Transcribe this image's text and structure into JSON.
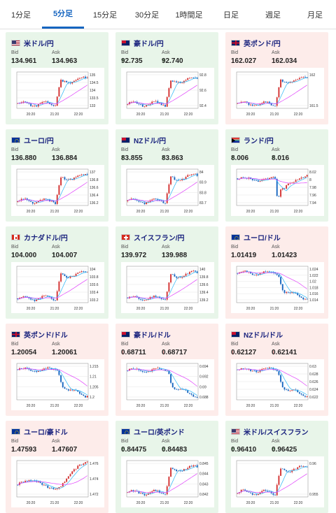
{
  "tabs": [
    "1分足",
    "5分足",
    "15分足",
    "30分足",
    "1時間足",
    "日足",
    "週足",
    "月足"
  ],
  "active_tab": 1,
  "labels": {
    "bid": "Bid",
    "ask": "Ask"
  },
  "colors": {
    "up_bg": "#e8f5e9",
    "down_bg": "#fdecea",
    "candle_up": "#d32f2f",
    "candle_down": "#1565c0",
    "ma_short": "#29b6f6",
    "ma_long": "#e040fb"
  },
  "pairs": [
    {
      "name": "米ドル/円",
      "flag": "us-flag-icon",
      "dir": "up",
      "bid": "134.961",
      "ask": "134.963",
      "chart_data": {
        "type": "candlestick",
        "x_ticks": [
          "20:20",
          "21:20",
          "22:20"
        ],
        "y_ticks": [
          "135",
          "134.5",
          "134",
          "133.5",
          "133"
        ],
        "shape": "rise"
      }
    },
    {
      "name": "豪ドル/円",
      "flag": "au-flag-icon",
      "dir": "up",
      "bid": "92.735",
      "ask": "92.740",
      "chart_data": {
        "type": "candlestick",
        "x_ticks": [
          "20:20",
          "21:20",
          "22:20"
        ],
        "y_ticks": [
          "92.8",
          "92.6",
          "92.4"
        ],
        "shape": "rise"
      }
    },
    {
      "name": "英ポンド/円",
      "flag": "gb-flag-icon",
      "dir": "down",
      "bid": "162.027",
      "ask": "162.034",
      "chart_data": {
        "type": "candlestick",
        "x_ticks": [
          "20:20",
          "21:20",
          "22:20"
        ],
        "y_ticks": [
          "162",
          "161.5"
        ],
        "shape": "rise"
      }
    },
    {
      "name": "ユーロ/円",
      "flag": "eu-flag-icon",
      "dir": "up",
      "bid": "136.880",
      "ask": "136.884",
      "chart_data": {
        "type": "candlestick",
        "x_ticks": [
          "20:20",
          "21:20",
          "22:20"
        ],
        "y_ticks": [
          "137",
          "136.8",
          "136.6",
          "136.4",
          "136.2"
        ],
        "shape": "rise"
      }
    },
    {
      "name": "NZドル/円",
      "flag": "nz-flag-icon",
      "dir": "up",
      "bid": "83.855",
      "ask": "83.863",
      "chart_data": {
        "type": "candlestick",
        "x_ticks": [
          "20:20",
          "21:20",
          "22:20"
        ],
        "y_ticks": [
          "84",
          "83.9",
          "83.8",
          "83.7"
        ],
        "shape": "rise"
      }
    },
    {
      "name": "ランド/円",
      "flag": "za-flag-icon",
      "dir": "up",
      "bid": "8.006",
      "ask": "8.016",
      "chart_data": {
        "type": "candlestick",
        "x_ticks": [
          "20:20",
          "21:20",
          "22:20"
        ],
        "y_ticks": [
          "8.02",
          "8",
          "7.98",
          "7.96",
          "7.94"
        ],
        "shape": "dip"
      }
    },
    {
      "name": "カナダドル/円",
      "flag": "ca-flag-icon",
      "dir": "up",
      "bid": "104.000",
      "ask": "104.007",
      "chart_data": {
        "type": "candlestick",
        "x_ticks": [
          "20:20",
          "21:20",
          "22:20"
        ],
        "y_ticks": [
          "104",
          "103.8",
          "103.6",
          "103.4",
          "103.2"
        ],
        "shape": "rise"
      }
    },
    {
      "name": "スイスフラン/円",
      "flag": "ch-flag-icon",
      "dir": "up",
      "bid": "139.972",
      "ask": "139.988",
      "chart_data": {
        "type": "candlestick",
        "x_ticks": [
          "20:20",
          "21:20",
          "22:20"
        ],
        "y_ticks": [
          "140",
          "139.8",
          "139.6",
          "139.4",
          "139.2"
        ],
        "shape": "rise"
      }
    },
    {
      "name": "ユーロ/ドル",
      "flag": "eu-flag-icon",
      "dir": "down",
      "bid": "1.01419",
      "ask": "1.01423",
      "chart_data": {
        "type": "candlestick",
        "x_ticks": [
          "20:20",
          "21:20",
          "22:20"
        ],
        "y_ticks": [
          "1.024",
          "1.022",
          "1.02",
          "1.018",
          "1.016",
          "1.014"
        ],
        "shape": "fall"
      }
    },
    {
      "name": "英ポンド/ドル",
      "flag": "gb-flag-icon",
      "dir": "down",
      "bid": "1.20054",
      "ask": "1.20061",
      "chart_data": {
        "type": "candlestick",
        "x_ticks": [
          "20:20",
          "21:20",
          "22:20"
        ],
        "y_ticks": [
          "1.215",
          "1.21",
          "1.205",
          "1.2"
        ],
        "shape": "fall"
      }
    },
    {
      "name": "豪ドル/ドル",
      "flag": "au-flag-icon",
      "dir": "down",
      "bid": "0.68711",
      "ask": "0.68717",
      "chart_data": {
        "type": "candlestick",
        "x_ticks": [
          "20:20",
          "21:20",
          "22:20"
        ],
        "y_ticks": [
          "0.694",
          "0.692",
          "0.69",
          "0.688"
        ],
        "shape": "fall"
      }
    },
    {
      "name": "NZドル/ドル",
      "flag": "nz-flag-icon",
      "dir": "down",
      "bid": "0.62127",
      "ask": "0.62141",
      "chart_data": {
        "type": "candlestick",
        "x_ticks": [
          "20:20",
          "21:20",
          "22:20"
        ],
        "y_ticks": [
          "0.63",
          "0.628",
          "0.626",
          "0.624",
          "0.622"
        ],
        "shape": "fall"
      }
    },
    {
      "name": "ユーロ/豪ドル",
      "flag": "eu-flag-icon",
      "dir": "down",
      "bid": "1.47593",
      "ask": "1.47607",
      "chart_data": {
        "type": "candlestick",
        "x_ticks": [
          "20:20",
          "21:20",
          "22:20"
        ],
        "y_ticks": [
          "1.476",
          "1.474",
          "1.472"
        ],
        "shape": "wave"
      }
    },
    {
      "name": "ユーロ/英ポンド",
      "flag": "eu-flag-icon",
      "dir": "up",
      "bid": "0.84475",
      "ask": "0.84483",
      "chart_data": {
        "type": "candlestick",
        "x_ticks": [
          "20:20",
          "21:20",
          "22:20"
        ],
        "y_ticks": [
          "0.845",
          "0.844",
          "0.843",
          "0.842"
        ],
        "shape": "rise"
      }
    },
    {
      "name": "米ドル/スイスフラン",
      "flag": "us-flag-icon",
      "dir": "up",
      "bid": "0.96410",
      "ask": "0.96425",
      "chart_data": {
        "type": "candlestick",
        "x_ticks": [
          "20:20",
          "21:20",
          "22:20"
        ],
        "y_ticks": [
          "0.96",
          "0.955"
        ],
        "shape": "rise"
      }
    }
  ]
}
